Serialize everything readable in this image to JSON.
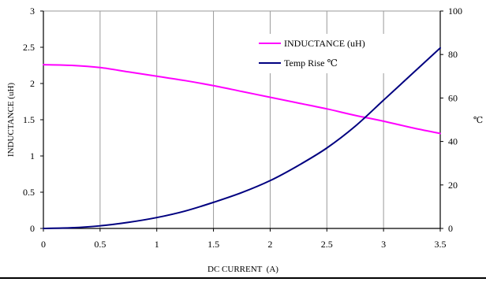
{
  "chart_data": {
    "type": "line",
    "xlabel": "DC CURRENT  (A)",
    "ylabel": "INDUCTANCE (uH)",
    "y2label": "℃",
    "xlim": [
      0,
      3.5
    ],
    "ylim": [
      0,
      3
    ],
    "y2lim": [
      0,
      100
    ],
    "x_ticks": [
      "0",
      "0.5",
      "1",
      "1.5",
      "2",
      "2.5",
      "3",
      "3.5"
    ],
    "y_ticks": [
      "0",
      "0.5",
      "1",
      "1.5",
      "2",
      "2.5",
      "3"
    ],
    "y2_ticks": [
      "0",
      "20",
      "40",
      "60",
      "80",
      "100"
    ],
    "grid": "vertical",
    "legend_position": "top-right",
    "series": [
      {
        "name": "INDUCTANCE (uH)",
        "axis": "left",
        "color": "#FF00FF",
        "x": [
          0,
          0.25,
          0.5,
          0.75,
          1.0,
          1.25,
          1.5,
          1.75,
          2.0,
          2.25,
          2.5,
          2.75,
          3.0,
          3.25,
          3.5
        ],
        "y": [
          2.26,
          2.25,
          2.22,
          2.16,
          2.1,
          2.04,
          1.97,
          1.89,
          1.81,
          1.73,
          1.65,
          1.56,
          1.48,
          1.39,
          1.31
        ]
      },
      {
        "name": "Temp Rise ℃",
        "axis": "right",
        "color": "#000080",
        "x": [
          0,
          0.25,
          0.5,
          0.75,
          1.0,
          1.25,
          1.5,
          1.75,
          2.0,
          2.25,
          2.5,
          2.75,
          3.0,
          3.25,
          3.5
        ],
        "y": [
          0,
          0.3,
          1.2,
          2.8,
          5,
          8,
          12,
          16.5,
          22,
          29,
          37,
          47,
          59,
          71,
          83
        ]
      }
    ]
  }
}
